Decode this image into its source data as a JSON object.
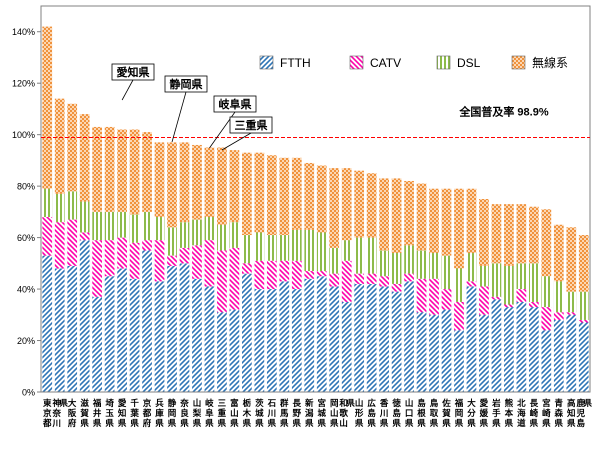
{
  "chart_data": {
    "type": "bar",
    "stacked": true,
    "ylim": [
      0,
      150
    ],
    "yticks": [
      0,
      20,
      40,
      60,
      80,
      100,
      120,
      140
    ],
    "ytick_labels": [
      "0%",
      "20%",
      "40%",
      "60%",
      "80%",
      "100%",
      "120%",
      "140%"
    ],
    "grid": false,
    "legend_position": "top-right",
    "categories": [
      {
        "label": "東京都"
      },
      {
        "label": "神奈川県"
      },
      {
        "label": "大阪府"
      },
      {
        "label": "滋賀県"
      },
      {
        "label": "福井県"
      },
      {
        "label": "埼玉県"
      },
      {
        "label": "愛知県"
      },
      {
        "label": "千葉県"
      },
      {
        "label": "京都府"
      },
      {
        "label": "兵庫県"
      },
      {
        "label": "静岡県"
      },
      {
        "label": "奈良県"
      },
      {
        "label": "山梨県"
      },
      {
        "label": "岐阜県"
      },
      {
        "label": "三重県"
      },
      {
        "label": "富山県"
      },
      {
        "label": "栃木県"
      },
      {
        "label": "茨城県"
      },
      {
        "label": "石川県"
      },
      {
        "label": "群馬県"
      },
      {
        "label": "長野県"
      },
      {
        "label": "新潟県"
      },
      {
        "label": "宮城県"
      },
      {
        "label": "岡山県"
      },
      {
        "label": "和歌山県"
      },
      {
        "label": "山形県"
      },
      {
        "label": "広島県"
      },
      {
        "label": "香川県"
      },
      {
        "label": "徳島県"
      },
      {
        "label": "山口県"
      },
      {
        "label": "島根県"
      },
      {
        "label": "鳥取県"
      },
      {
        "label": "佐賀県"
      },
      {
        "label": "福岡県"
      },
      {
        "label": "大分県"
      },
      {
        "label": "愛媛県"
      },
      {
        "label": "岩手県"
      },
      {
        "label": "熊本県"
      },
      {
        "label": "北海道"
      },
      {
        "label": "長崎県"
      },
      {
        "label": "宮崎県"
      },
      {
        "label": "青森県"
      },
      {
        "label": "高知県"
      },
      {
        "label": "鹿児島県"
      }
    ],
    "series": [
      {
        "name": "FTTH",
        "color": "#2e75b6",
        "pattern": "diagonal-stripes",
        "values": [
          53,
          48,
          49,
          59,
          37,
          45,
          48,
          44,
          55,
          43,
          49,
          50,
          44,
          41,
          31,
          32,
          46,
          40,
          40,
          43,
          40,
          44,
          45,
          41,
          35,
          42,
          42,
          41,
          39,
          43,
          31,
          30,
          32,
          24,
          41,
          30,
          36,
          33,
          35,
          33,
          24,
          28,
          30,
          27
        ]
      },
      {
        "name": "CATV",
        "color": "#ff0000",
        "pattern": "diagonal-stripes-reverse",
        "values": [
          15,
          18,
          18,
          3,
          22,
          14,
          12,
          14,
          4,
          16,
          4,
          6,
          13,
          18,
          24,
          24,
          4,
          11,
          11,
          8,
          11,
          3,
          2,
          5,
          16,
          4,
          4,
          4,
          3,
          3,
          13,
          14,
          8,
          11,
          2,
          11,
          1,
          1,
          5,
          2,
          9,
          3,
          1,
          1
        ]
      },
      {
        "name": "DSL",
        "color": "#8dbb4a",
        "pattern": "vertical-stripes",
        "values": [
          11,
          11,
          11,
          12,
          11,
          11,
          10,
          11,
          11,
          9,
          11,
          10,
          10,
          9,
          10,
          10,
          11,
          11,
          10,
          10,
          12,
          16,
          15,
          10,
          8,
          14,
          14,
          10,
          12,
          11,
          11,
          10,
          13,
          13,
          11,
          8,
          13,
          15,
          10,
          15,
          12,
          12,
          8,
          11
        ]
      },
      {
        "name": "無線系",
        "color": "#f0923c",
        "pattern": "checker",
        "values": [
          63,
          37,
          34,
          34,
          33,
          33,
          32,
          33,
          31,
          29,
          33,
          31,
          29,
          27,
          30,
          28,
          32,
          31,
          31,
          30,
          28,
          26,
          26,
          31,
          28,
          26,
          25,
          28,
          29,
          25,
          26,
          25,
          26,
          31,
          25,
          26,
          23,
          24,
          23,
          22,
          26,
          22,
          25,
          22
        ]
      }
    ],
    "reference_line": {
      "value": 98.9,
      "label": "全国普及率 98.9%",
      "color": "#ff0000",
      "style": "dashed"
    },
    "annotations": [
      {
        "text": "愛知県",
        "category_index": 6
      },
      {
        "text": "静岡県",
        "category_index": 10
      },
      {
        "text": "岐阜県",
        "category_index": 13
      },
      {
        "text": "三重県",
        "category_index": 14
      }
    ]
  }
}
